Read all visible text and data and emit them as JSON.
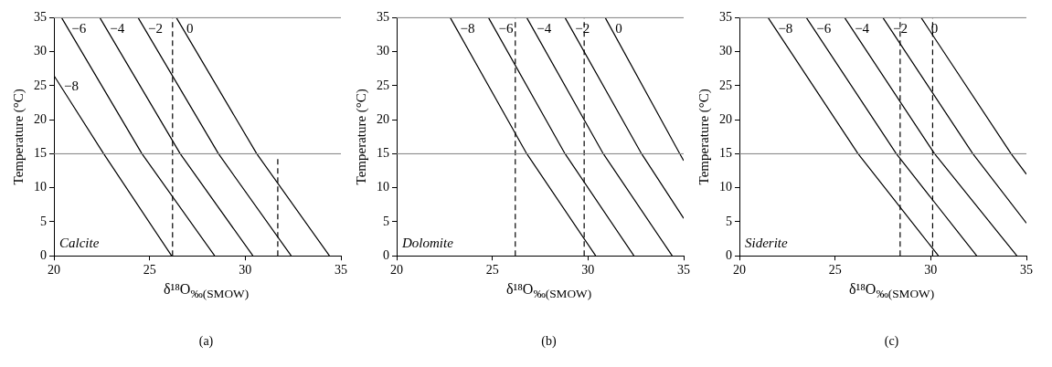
{
  "chart_data": [
    {
      "type": "line",
      "title": "(a)",
      "xlabel": "δ¹⁸O$_{‰(SMOW)}$",
      "ylabel": "Temperature (°C)",
      "xlim": [
        20,
        35
      ],
      "xticks": [
        20,
        25,
        30,
        35
      ],
      "ylim": [
        0,
        35
      ],
      "yticks": [
        0,
        5,
        10,
        15,
        20,
        25,
        30,
        35
      ],
      "grid": false,
      "legend": false,
      "marker": "none",
      "annotations": [
        "Calcite"
      ],
      "ref_lines": [
        {
          "axis": "y",
          "value": 15,
          "color": "#808080"
        }
      ],
      "series": [
        {
          "name": "−8",
          "color": "#000000",
          "x": [
            20,
            22.6,
            26.15
          ],
          "values": [
            26.5,
            15,
            0
          ]
        },
        {
          "name": "−6",
          "color": "#000000",
          "x": [
            20.4,
            24.6,
            28.4
          ],
          "values": [
            35,
            15,
            0
          ]
        },
        {
          "name": "−4",
          "color": "#000000",
          "x": [
            22.4,
            26.6,
            30.4
          ],
          "values": [
            35,
            15,
            0
          ]
        },
        {
          "name": "−2",
          "color": "#000000",
          "x": [
            24.4,
            28.6,
            32.4
          ],
          "values": [
            35,
            15,
            0
          ]
        },
        {
          "name": "0",
          "color": "#000000",
          "x": [
            26.4,
            30.6,
            34.4
          ],
          "values": [
            35,
            15,
            0
          ]
        },
        {
          "color": "#000000",
          "line_style": "dashed",
          "x": [
            26.2,
            26.2
          ],
          "values": [
            0,
            35
          ]
        },
        {
          "color": "#000000",
          "line_style": "dashed",
          "x": [
            31.7,
            31.7
          ],
          "values": [
            0,
            14.5
          ]
        }
      ]
    },
    {
      "type": "line",
      "title": "(b)",
      "xlabel": "δ¹⁸O$_{‰(SMOW)}$",
      "ylabel": "Temperature (°C)",
      "xlim": [
        20,
        35
      ],
      "xticks": [
        20,
        25,
        30,
        35
      ],
      "ylim": [
        0,
        35
      ],
      "yticks": [
        0,
        5,
        10,
        15,
        20,
        25,
        30,
        35
      ],
      "grid": false,
      "legend": false,
      "marker": "none",
      "annotations": [
        "Dolomite"
      ],
      "ref_lines": [
        {
          "axis": "y",
          "value": 15,
          "color": "#808080"
        }
      ],
      "series": [
        {
          "name": "−8",
          "color": "#000000",
          "x": [
            22.8,
            26.8,
            30.4
          ],
          "values": [
            35,
            15,
            0
          ]
        },
        {
          "name": "−6",
          "color": "#000000",
          "x": [
            24.8,
            28.8,
            32.4
          ],
          "values": [
            35,
            15,
            0
          ]
        },
        {
          "name": "−4",
          "color": "#000000",
          "x": [
            26.8,
            30.8,
            34.4
          ],
          "values": [
            35,
            15,
            0
          ]
        },
        {
          "name": "−2",
          "color": "#000000",
          "x": [
            28.8,
            32.8,
            35
          ],
          "values": [
            35,
            15,
            5.5
          ]
        },
        {
          "name": "0",
          "color": "#000000",
          "x": [
            30.9,
            34.8,
            35
          ],
          "values": [
            35,
            15,
            14
          ]
        },
        {
          "color": "#000000",
          "line_style": "dashed",
          "x": [
            26.2,
            26.2
          ],
          "values": [
            0,
            35
          ]
        },
        {
          "color": "#000000",
          "line_style": "dashed",
          "x": [
            29.8,
            29.8
          ],
          "values": [
            0,
            35
          ]
        }
      ]
    },
    {
      "type": "line",
      "title": "(c)",
      "xlabel": "δ¹⁸O$_{‰(SMOW)}$",
      "ylabel": "Temperature (°C)",
      "xlim": [
        20,
        35
      ],
      "xticks": [
        20,
        25,
        30,
        35
      ],
      "ylim": [
        0,
        35
      ],
      "yticks": [
        0,
        5,
        10,
        15,
        20,
        25,
        30,
        35
      ],
      "grid": false,
      "legend": false,
      "marker": "none",
      "annotations": [
        "Siderite"
      ],
      "ref_lines": [
        {
          "axis": "y",
          "value": 15,
          "color": "#808080"
        }
      ],
      "series": [
        {
          "name": "−8",
          "color": "#000000",
          "x": [
            21.5,
            26.2,
            30.4
          ],
          "values": [
            35,
            15,
            0
          ]
        },
        {
          "name": "−6",
          "color": "#000000",
          "x": [
            23.5,
            28.2,
            32.4
          ],
          "values": [
            35,
            15,
            0
          ]
        },
        {
          "name": "−4",
          "color": "#000000",
          "x": [
            25.5,
            30.2,
            34.5
          ],
          "values": [
            35,
            15,
            0
          ]
        },
        {
          "name": "−2",
          "color": "#000000",
          "x": [
            27.5,
            32.2,
            35
          ],
          "values": [
            35,
            15,
            4.8
          ]
        },
        {
          "name": "0",
          "color": "#000000",
          "x": [
            29.5,
            34.2,
            35
          ],
          "values": [
            35,
            15,
            12
          ]
        },
        {
          "color": "#000000",
          "line_style": "dashed",
          "x": [
            28.4,
            28.4
          ],
          "values": [
            0,
            35
          ]
        },
        {
          "color": "#000000",
          "line_style": "dashed",
          "x": [
            30.1,
            30.1
          ],
          "values": [
            0,
            35
          ]
        }
      ]
    }
  ]
}
